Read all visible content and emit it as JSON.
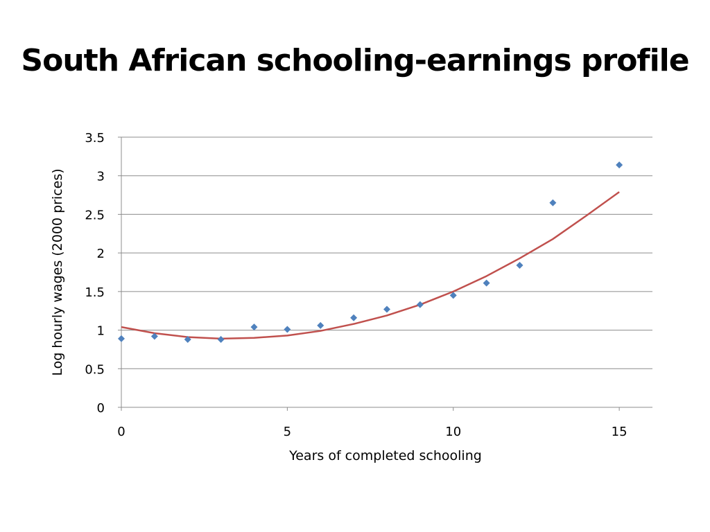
{
  "slide": {
    "title": "South African schooling-earnings profile"
  },
  "chart_data": {
    "type": "scatter",
    "title": "",
    "xlabel": "Years of completed schooling",
    "ylabel": "Log hourly wages (2000 prices)",
    "xlim": [
      0,
      16
    ],
    "ylim": [
      0,
      3.5
    ],
    "xticks": [
      0,
      5,
      10,
      15
    ],
    "yticks": [
      0,
      0.5,
      1,
      1.5,
      2,
      2.5,
      3,
      3.5
    ],
    "ytick_labels": [
      "0",
      "0.5",
      "1",
      "1.5",
      "2",
      "2.5",
      "3",
      "3.5"
    ],
    "grid": "horizontal",
    "legend": "none",
    "series": [
      {
        "kind": "scatter",
        "marker": "diamond",
        "color": "#4f81bd",
        "x": [
          0,
          1,
          2,
          3,
          4,
          5,
          6,
          7,
          8,
          9,
          10,
          11,
          12,
          13,
          15
        ],
        "y": [
          0.89,
          0.92,
          0.88,
          0.88,
          1.04,
          1.01,
          1.06,
          1.16,
          1.27,
          1.33,
          1.45,
          1.61,
          1.84,
          2.65,
          3.14
        ]
      },
      {
        "kind": "line",
        "color": "#c0504d",
        "x": [
          0,
          1,
          2,
          3,
          4,
          5,
          6,
          7,
          8,
          9,
          10,
          11,
          12,
          13,
          14,
          15
        ],
        "y": [
          1.04,
          0.96,
          0.91,
          0.89,
          0.9,
          0.93,
          0.99,
          1.08,
          1.19,
          1.33,
          1.5,
          1.7,
          1.93,
          2.18,
          2.48,
          2.79
        ]
      }
    ]
  }
}
